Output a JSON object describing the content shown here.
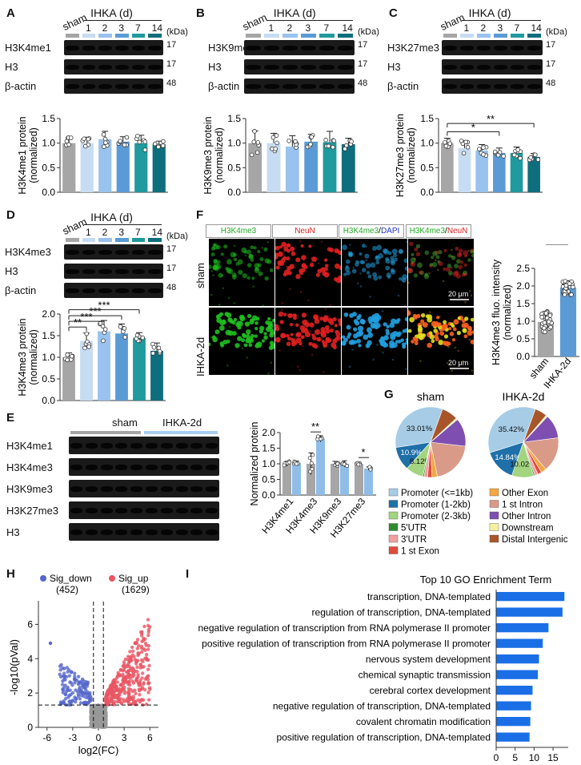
{
  "colors": {
    "sham": "#a6a6a6",
    "d1": "#c6dcf2",
    "d2": "#99c2ee",
    "d3": "#5b9bd5",
    "d7": "#1f9a9e",
    "d14": "#0f6e7d",
    "up": "#e85563",
    "down": "#5566cc",
    "bar_go": "#1b6fe6"
  },
  "panel_labels": [
    "A",
    "B",
    "C",
    "D",
    "E",
    "F",
    "G",
    "H",
    "I"
  ],
  "blots": {
    "header_sham": "sham",
    "header_group": "IHKA (d)",
    "lanes": [
      "1",
      "2",
      "3",
      "7",
      "14"
    ],
    "kda": "(kDa)",
    "A": {
      "rows": [
        {
          "label": "H3K4me1",
          "kda": "17"
        },
        {
          "label": "H3",
          "kda": "17"
        },
        {
          "label": "β-actin",
          "kda": "48"
        }
      ]
    },
    "B": {
      "rows": [
        {
          "label": "H3K9me3",
          "kda": "17"
        },
        {
          "label": "H3",
          "kda": "17"
        },
        {
          "label": "β-actin",
          "kda": "48"
        }
      ]
    },
    "C": {
      "rows": [
        {
          "label": "H3K27me3",
          "kda": "17"
        },
        {
          "label": "H3",
          "kda": "17"
        },
        {
          "label": "β-actin",
          "kda": "48"
        }
      ]
    },
    "D": {
      "rows": [
        {
          "label": "H3K4me3",
          "kda": "17"
        },
        {
          "label": "H3",
          "kda": "17"
        },
        {
          "label": "β-actin",
          "kda": "48"
        }
      ]
    },
    "E": {
      "group_sham": "sham",
      "group_ihka": "IHKA-2d",
      "rows": [
        {
          "label": "H3K4me1"
        },
        {
          "label": "H3K4me3"
        },
        {
          "label": "H3K9me3"
        },
        {
          "label": "H3K27me3"
        },
        {
          "label": "H3"
        }
      ]
    }
  },
  "chart_data": [
    {
      "panel": "A",
      "type": "bar",
      "categories": [
        "sham",
        "1",
        "2",
        "3",
        "7",
        "14"
      ],
      "values": [
        1.0,
        1.0,
        1.08,
        1.03,
        1.0,
        0.98
      ],
      "errors": [
        0.12,
        0.12,
        0.16,
        0.1,
        0.16,
        0.06
      ],
      "ylabel": "H3K4me1 protein\n(normalized)",
      "ylim": [
        0,
        1.5
      ],
      "yticks": [
        "0.0",
        "0.5",
        "1.0",
        "1.5"
      ],
      "sig": []
    },
    {
      "panel": "B",
      "type": "bar",
      "categories": [
        "sham",
        "1",
        "2",
        "3",
        "7",
        "14"
      ],
      "values": [
        1.0,
        1.0,
        0.93,
        1.03,
        1.02,
        0.98
      ],
      "errors": [
        0.25,
        0.2,
        0.22,
        0.15,
        0.22,
        0.12
      ],
      "ylabel": "H3K9me3 protein\n(normalized)",
      "ylim": [
        0,
        1.5
      ],
      "yticks": [
        "0.0",
        "0.5",
        "1.0",
        "1.5"
      ],
      "sig": []
    },
    {
      "panel": "C",
      "type": "bar",
      "categories": [
        "sham",
        "1",
        "2",
        "3",
        "7",
        "14"
      ],
      "values": [
        1.0,
        0.9,
        0.85,
        0.8,
        0.8,
        0.72
      ],
      "errors": [
        0.1,
        0.15,
        0.12,
        0.1,
        0.12,
        0.07
      ],
      "ylabel": "H3K27me3 protein\n(normalized)",
      "ylim": [
        0,
        1.5
      ],
      "yticks": [
        "0.0",
        "0.5",
        "1.0",
        "1.5"
      ],
      "sig": [
        {
          "from": 0,
          "to": 3,
          "label": "*",
          "level": 1.23
        },
        {
          "from": 0,
          "to": 5,
          "label": "**",
          "level": 1.4
        }
      ]
    },
    {
      "panel": "D",
      "type": "bar",
      "categories": [
        "sham",
        "1",
        "2",
        "3",
        "7",
        "14"
      ],
      "values": [
        1.0,
        1.38,
        1.6,
        1.55,
        1.45,
        1.15
      ],
      "errors": [
        0.1,
        0.18,
        0.25,
        0.22,
        0.12,
        0.18
      ],
      "ylabel": "H3K4me3 protein\n(normalized)",
      "ylim": [
        0,
        2.0
      ],
      "yticks": [
        "0.0",
        "0.5",
        "1.0",
        "1.5",
        "2.0"
      ],
      "sig": [
        {
          "from": 0,
          "to": 1,
          "label": "**",
          "level": 1.7
        },
        {
          "from": 0,
          "to": 2,
          "label": "***",
          "level": 1.83
        },
        {
          "from": 0,
          "to": 3,
          "label": "***",
          "level": 1.96
        },
        {
          "from": 0,
          "to": 4,
          "label": "***",
          "level": 2.1
        }
      ]
    },
    {
      "panel": "E",
      "type": "bar",
      "title": "",
      "ylabel": "Normalized protein",
      "ylim": [
        0,
        2.0
      ],
      "yticks": [
        "0.0",
        "0.5",
        "1.0",
        "1.5",
        "2.0"
      ],
      "categories": [
        "H3K4me1",
        "H3K4me3",
        "H3K9me3",
        "H3K27me3"
      ],
      "series": [
        {
          "name": "sham",
          "values": [
            1.0,
            1.0,
            1.0,
            1.0
          ],
          "errors": [
            0.08,
            0.35,
            0.08,
            0.05
          ]
        },
        {
          "name": "IHKA-2d",
          "values": [
            1.03,
            1.8,
            1.0,
            0.85
          ],
          "errors": [
            0.06,
            0.1,
            0.1,
            0.05
          ]
        }
      ],
      "sig": [
        {
          "category": 1,
          "label": "**"
        },
        {
          "category": 3,
          "label": "*"
        }
      ]
    },
    {
      "panel": "F",
      "type": "bar",
      "categories": [
        "sham",
        "IHKA-2d"
      ],
      "values": [
        0.98,
        1.95
      ],
      "errors": [
        0.3,
        0.2
      ],
      "ylabel": "H3K4me3 fluo. intensity\n(normalized)",
      "ylim": [
        0,
        2.5
      ],
      "yticks": [
        "0.0",
        "0.5",
        "1.0",
        "1.5",
        "2.0",
        "2.5"
      ],
      "sig": [
        {
          "from": 0,
          "to": 1,
          "label": "***"
        }
      ]
    },
    {
      "panel": "G",
      "type": "pie",
      "titles": [
        "sham",
        "IHKA-2d"
      ],
      "legend": [
        "Promoter (<=1kb)",
        "Promoter (1-2kb)",
        "Promoter (2-3kb)",
        "5'UTR",
        "3'UTR",
        "1 st Exon",
        "Other Exon",
        "1 st Intron",
        "Other Intron",
        "Downstream",
        "Distal Intergenic"
      ],
      "slice_colors": [
        "#a6cce6",
        "#1f6fa8",
        "#a3d47f",
        "#2e8b2e",
        "#f0a0a0",
        "#e34a3a",
        "#f4a742",
        "#d99a88",
        "#7e4fb0",
        "#f5f0a0",
        "#a9552a"
      ],
      "sham": [
        33.01,
        10.9,
        8.12,
        0.6,
        1.6,
        2.0,
        2.5,
        20.0,
        13.0,
        0.8,
        7.47
      ],
      "ihka": [
        35.42,
        14.84,
        10.02,
        0.6,
        1.5,
        1.8,
        2.4,
        16.0,
        11.0,
        0.8,
        5.62
      ],
      "slice_labels_sham": [
        "33.01%",
        "10.9%",
        "8.12%"
      ],
      "slice_labels_ihka": [
        "35.42%",
        "14.84%",
        "10.02%"
      ]
    },
    {
      "panel": "H",
      "type": "scatter",
      "xlabel": "log2(FC)",
      "ylabel": "-log10(pVal)",
      "xlim": [
        -7,
        7
      ],
      "ylim": [
        0,
        7
      ],
      "xticks": [
        "-6",
        "-3",
        "0",
        "3",
        "6"
      ],
      "yticks": [
        "0",
        "2",
        "4",
        "6"
      ],
      "legend": [
        {
          "name": "Sig_down",
          "count": "(452)"
        },
        {
          "name": "Sig_up",
          "count": "(1629)"
        }
      ]
    },
    {
      "panel": "I",
      "type": "bar",
      "title": "Top 10 GO Enrichment Term",
      "xlabel": "-log10(pVal)",
      "xticks": [
        "0",
        "5",
        "10",
        "15"
      ],
      "xlim": [
        0,
        19
      ],
      "categories": [
        "transcription, DNA-templated",
        "regulation of transcription, DNA-templated",
        "negative regulation of transcription from RNA polymerase II promoter",
        "positive regulation of transcription from RNA polymerase II promoter",
        "nervous system development",
        "chemical synaptic transmission",
        "cerebral cortex development",
        "negative regulation of transcription, DNA-templated",
        "covalent chromatin modification",
        "positive regulation of transcription, DNA-templated"
      ],
      "values": [
        18.0,
        17.5,
        13.8,
        12.3,
        11.3,
        11.0,
        9.6,
        9.2,
        9.0,
        8.8
      ]
    }
  ],
  "micrographs": {
    "tags": [
      "H3K4me3",
      "NeuN",
      "H3K4me3",
      "/",
      "DAPI",
      "H3K4me3",
      "/",
      "NeuN"
    ],
    "rows": [
      "sham",
      "IHKA-2d"
    ],
    "scale": "20 μm"
  }
}
